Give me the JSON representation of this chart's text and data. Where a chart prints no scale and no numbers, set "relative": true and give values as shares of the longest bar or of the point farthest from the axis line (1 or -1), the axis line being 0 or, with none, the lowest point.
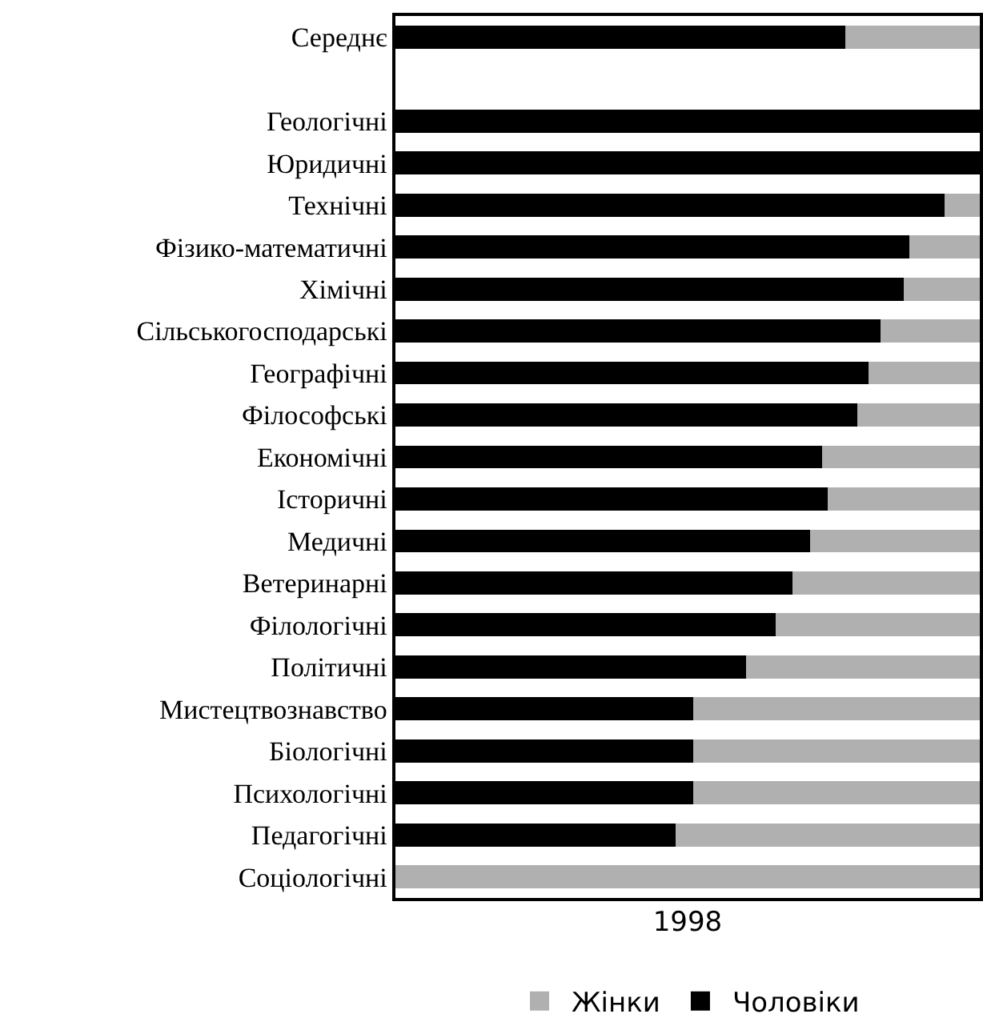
{
  "chart_data": {
    "type": "bar",
    "orientation": "horizontal",
    "stacked": true,
    "relative": true,
    "xlabel": "1998",
    "legend": "bottom",
    "grid": false,
    "categories": [
      "Середнє",
      null,
      "Геологічні",
      "Юридичні",
      "Технічні",
      "Фізико-математичні",
      "Хімічні",
      "Сільськогосподарські",
      "Географічні",
      "Філософські",
      "Економічні",
      "Історичні",
      "Медичні",
      "Ветеринарні",
      "Філологічні",
      "Політичні",
      "Мистецтвознавство",
      "Біологічні",
      "Психологічні",
      "Педагогічні",
      "Соціологічні"
    ],
    "series": [
      {
        "name": "Чоловіки",
        "color": "#000000",
        "values": [
          0.77,
          null,
          1,
          1,
          0.94,
          0.88,
          0.87,
          0.83,
          0.81,
          0.79,
          0.73,
          0.74,
          0.71,
          0.68,
          0.65,
          0.6,
          0.51,
          0.51,
          0.51,
          0.48,
          0
        ]
      },
      {
        "name": "Жінки",
        "color": "#b0b0b0",
        "values": [
          0.23,
          null,
          0,
          0,
          0.06,
          0.12,
          0.13,
          0.17,
          0.19,
          0.21,
          0.27,
          0.26,
          0.29,
          0.32,
          0.35,
          0.4,
          0.49,
          0.49,
          0.49,
          0.52,
          1
        ]
      }
    ]
  }
}
